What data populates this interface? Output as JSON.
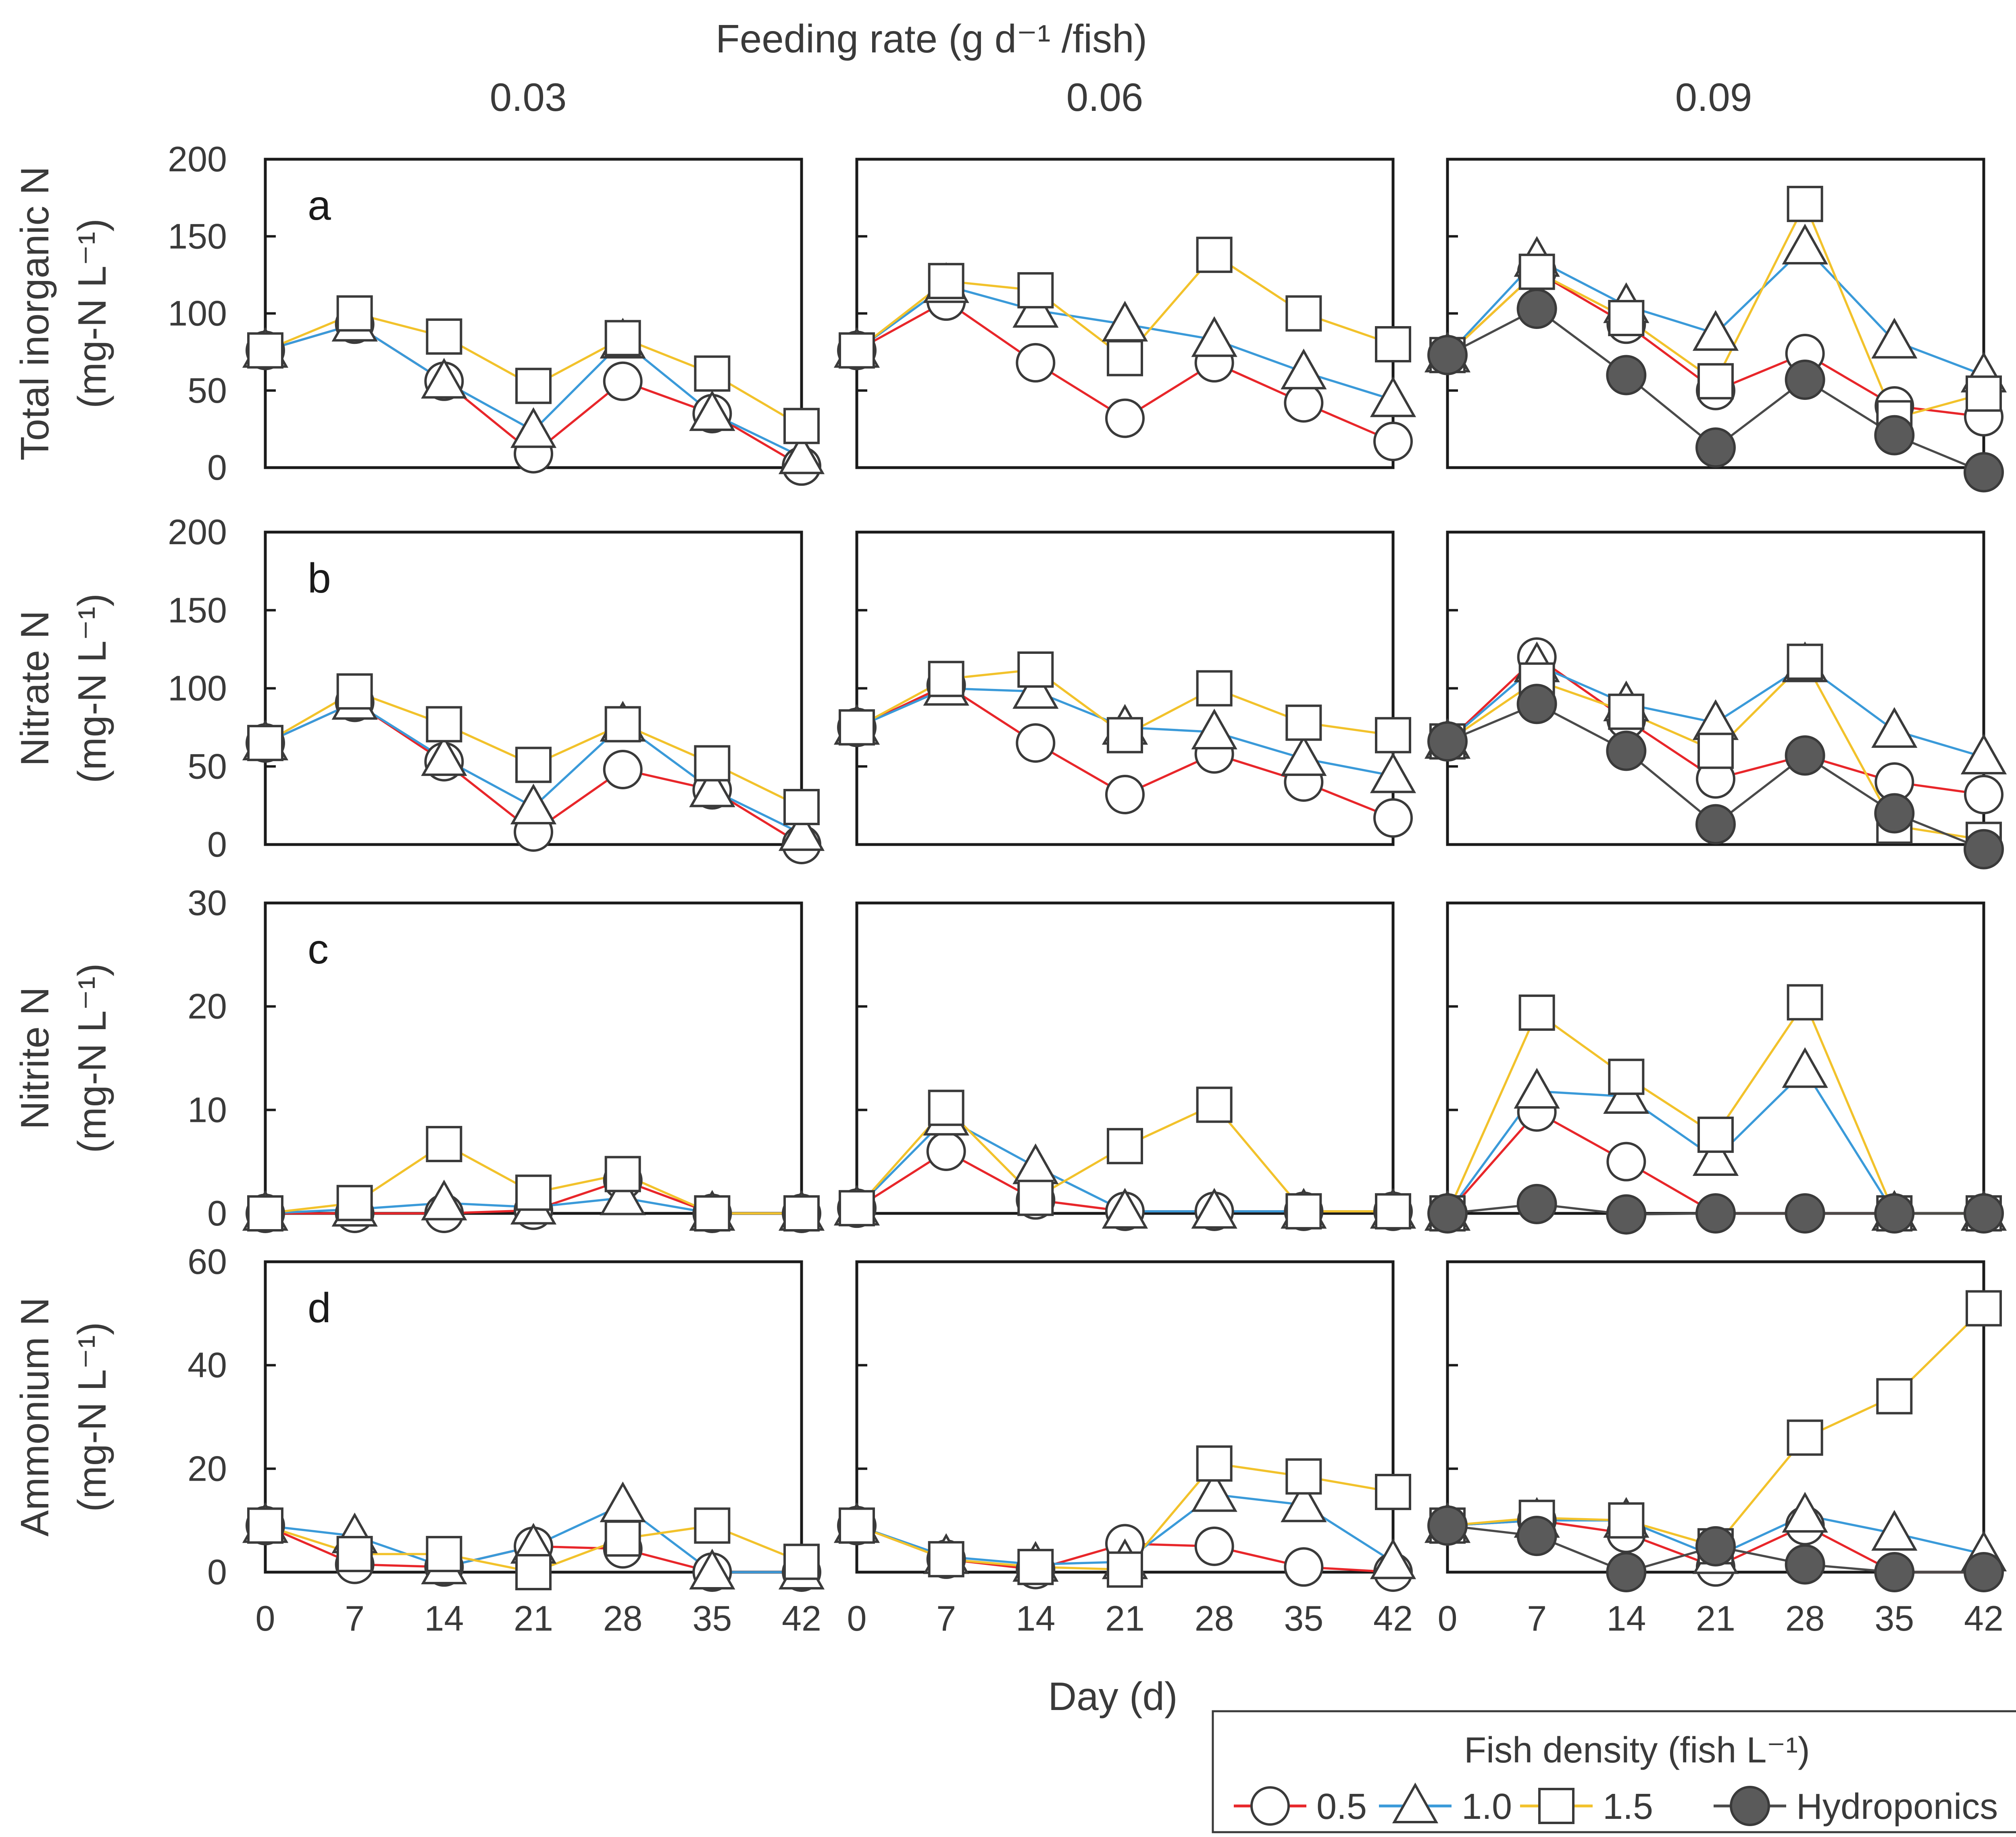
{
  "figure": {
    "top_title": "Feeding rate (g d⁻¹ /fish)",
    "columns": [
      "0.03",
      "0.06",
      "0.09"
    ],
    "x_axis_title": "Day (d)"
  },
  "legend": {
    "title": "Fish density (fish L⁻¹)",
    "entries": [
      {
        "key": "d05",
        "label": "0.5",
        "marker": "circle",
        "color": "#e8262a"
      },
      {
        "key": "d10",
        "label": "1.0",
        "marker": "triangle",
        "color": "#3a9ad9"
      },
      {
        "key": "d15",
        "label": "1.5",
        "marker": "square",
        "color": "#f2c22b"
      },
      {
        "key": "hydro",
        "label": "Hydroponics",
        "marker": "filled-circle",
        "color": "#4a4a4a"
      }
    ]
  },
  "chart_data": {
    "type": "line",
    "x": [
      0,
      7,
      14,
      21,
      28,
      35,
      42
    ],
    "xlabel": "Day (d)",
    "xlim": [
      0,
      42
    ],
    "column_titles": [
      "0.03",
      "0.06",
      "0.09"
    ],
    "rows": [
      {
        "letter": "a",
        "ylabel1": "Total inorganic N",
        "ylabel2": "(mg-N L⁻¹)",
        "ylim": [
          0,
          200
        ],
        "yticks": [
          0,
          50,
          100,
          150,
          200
        ],
        "panels": [
          {
            "column": "0.03",
            "series": {
              "d05": [
                76,
                93,
                56,
                9,
                56,
                35,
                1
              ],
              "d10": [
                76,
                93,
                56,
                24,
                82,
                35,
                7
              ],
              "d15": [
                76,
                100,
                85,
                53,
                84,
                61,
                27
              ]
            }
          },
          {
            "column": "0.06",
            "series": {
              "d05": [
                76,
                108,
                68,
                32,
                68,
                42,
                17
              ],
              "d10": [
                76,
                118,
                102,
                93,
                83,
                62,
                44
              ],
              "d15": [
                76,
                121,
                115,
                71,
                138,
                100,
                80
              ]
            }
          },
          {
            "column": "0.09",
            "series": {
              "d05": [
                73,
                127,
                93,
                50,
                74,
                40,
                33
              ],
              "d10": [
                73,
                135,
                105,
                87,
                143,
                82,
                60
              ],
              "d15": [
                73,
                127,
                97,
                56,
                171,
                32,
                48
              ],
              "hydro": [
                73,
                103,
                60,
                13,
                57,
                21,
                -3
              ]
            }
          }
        ]
      },
      {
        "letter": "b",
        "ylabel1": "Nitrate N",
        "ylabel2": "(mg-N L⁻¹)",
        "ylim": [
          0,
          200
        ],
        "yticks": [
          0,
          50,
          100,
          150,
          200
        ],
        "panels": [
          {
            "column": "0.03",
            "series": {
              "d05": [
                65,
                91,
                53,
                8,
                48,
                35,
                0
              ],
              "d10": [
                65,
                91,
                55,
                24,
                77,
                35,
                7
              ],
              "d15": [
                65,
                98,
                77,
                51,
                77,
                52,
                24
              ]
            }
          },
          {
            "column": "0.06",
            "series": {
              "d05": [
                75,
                102,
                65,
                32,
                58,
                40,
                17
              ],
              "d10": [
                75,
                100,
                98,
                75,
                72,
                55,
                44
              ],
              "d15": [
                75,
                106,
                112,
                70,
                100,
                78,
                70
              ]
            }
          },
          {
            "column": "0.09",
            "series": {
              "d05": [
                66,
                120,
                80,
                42,
                57,
                40,
                32
              ],
              "d10": [
                66,
                115,
                90,
                78,
                115,
                73,
                56
              ],
              "d15": [
                66,
                105,
                85,
                60,
                117,
                12,
                3
              ],
              "hydro": [
                66,
                90,
                60,
                13,
                57,
                20,
                -3
              ]
            }
          }
        ]
      },
      {
        "letter": "c",
        "ylabel1": "Nitrite N",
        "ylabel2": "(mg-N L⁻¹)",
        "ylim": [
          0,
          30
        ],
        "yticks": [
          0,
          10,
          20,
          30
        ],
        "panels": [
          {
            "column": "0.03",
            "series": {
              "d05": [
                0,
                0,
                0,
                0.3,
                3.2,
                0,
                0
              ],
              "d10": [
                0,
                0.4,
                1.0,
                0.6,
                1.5,
                0,
                0
              ],
              "d15": [
                0,
                1.0,
                6.7,
                2.0,
                3.8,
                0,
                0
              ]
            }
          },
          {
            "column": "0.06",
            "series": {
              "d05": [
                0.5,
                6,
                1.3,
                0.2,
                0.2,
                0.2,
                0.2
              ],
              "d10": [
                0.5,
                9.2,
                4.5,
                0.2,
                0.2,
                0.2,
                0.2
              ],
              "d15": [
                0.5,
                10.2,
                1.5,
                6.5,
                10.5,
                0.2,
                0.2
              ]
            }
          },
          {
            "column": "0.09",
            "series": {
              "d05": [
                0,
                9.8,
                5,
                0,
                0,
                0,
                0
              ],
              "d10": [
                0,
                11.8,
                11.3,
                5.3,
                13.8,
                0,
                0
              ],
              "d15": [
                0,
                19.4,
                13.2,
                7.6,
                20.4,
                0,
                0
              ],
              "hydro": [
                0,
                0.9,
                -0.1,
                0,
                0,
                0,
                0
              ]
            }
          }
        ]
      },
      {
        "letter": "d",
        "ylabel1": "Ammonium N",
        "ylabel2": "(mg-N L⁻¹)",
        "ylim": [
          0,
          60
        ],
        "yticks": [
          0,
          20,
          40,
          60
        ],
        "panels": [
          {
            "column": "0.03",
            "series": {
              "d05": [
                9,
                1.5,
                1.0,
                5,
                4.5,
                0,
                0
              ],
              "d10": [
                9,
                7,
                1.0,
                5,
                13,
                0,
                0
              ],
              "d15": [
                9,
                3.5,
                3.5,
                0,
                6.5,
                9,
                2
              ]
            }
          },
          {
            "column": "0.06",
            "series": {
              "d05": [
                9,
                2.5,
                0.5,
                5.5,
                5,
                1,
                0
              ],
              "d10": [
                9,
                3,
                1.5,
                2,
                15,
                13,
                2
              ],
              "d15": [
                9,
                2.5,
                1.0,
                0.5,
                21,
                18.5,
                15.5
              ]
            }
          },
          {
            "column": "0.09",
            "series": {
              "d05": [
                9,
                10,
                7.5,
                1,
                9,
                0,
                0
              ],
              "d10": [
                9,
                10,
                10,
                3,
                11,
                7.5,
                3.5
              ],
              "d15": [
                9,
                10.5,
                10,
                5,
                26,
                34,
                51
              ],
              "hydro": [
                9,
                7,
                0,
                5,
                1.5,
                0,
                0
              ]
            }
          }
        ]
      }
    ]
  }
}
